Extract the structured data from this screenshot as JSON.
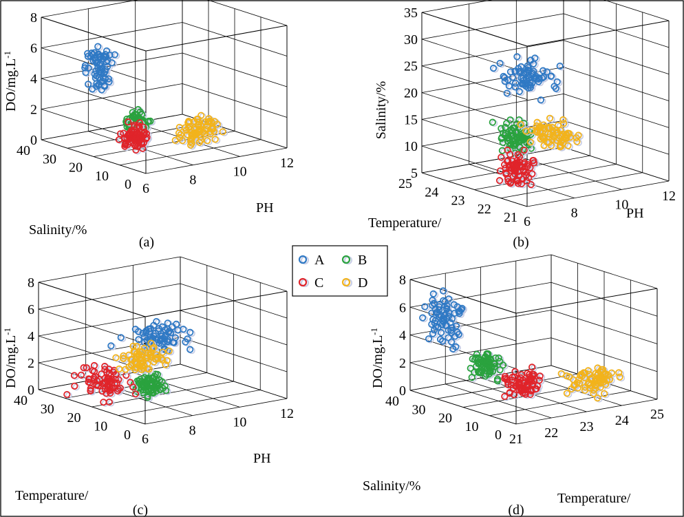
{
  "colors": {
    "A": "#2f79c4",
    "B": "#2aa23e",
    "C": "#e0242a",
    "D": "#f2b31c"
  },
  "legend": [
    {
      "label": "A",
      "color": "#2f79c4"
    },
    {
      "label": "B",
      "color": "#2aa23e"
    },
    {
      "label": "C",
      "color": "#e0242a"
    },
    {
      "label": "D",
      "color": "#f2b31c"
    }
  ],
  "chart_data": [
    {
      "type": "scatter3d",
      "caption": "(a)",
      "xlabel": "PH",
      "ylabel": "Salinity/%",
      "zlabel": "DO/mg.L-1",
      "xlim": [
        6,
        12
      ],
      "ylim": [
        0,
        40
      ],
      "zlim": [
        0,
        8
      ],
      "xticks": [
        "6",
        "8",
        "10",
        "12"
      ],
      "yticks": [
        "0",
        "10",
        "20",
        "30",
        "40"
      ],
      "zticks": [
        "0",
        "2",
        "4",
        "6",
        "8"
      ],
      "series": [
        {
          "name": "A",
          "pH": [
            6.5,
            7.5
          ],
          "salinity": [
            22,
            32
          ],
          "do": [
            3.0,
            7.2
          ]
        },
        {
          "name": "B",
          "pH": [
            6.8,
            8.0
          ],
          "salinity": [
            12,
            20
          ],
          "do": [
            1.2,
            3.0
          ]
        },
        {
          "name": "C",
          "pH": [
            6.6,
            7.8
          ],
          "salinity": [
            10,
            20
          ],
          "do": [
            0.0,
            2.5
          ]
        },
        {
          "name": "D",
          "pH": [
            8.2,
            10.5
          ],
          "salinity": [
            6,
            14
          ],
          "do": [
            0.2,
            2.5
          ]
        }
      ]
    },
    {
      "type": "scatter3d",
      "caption": "(b)",
      "xlabel": "PH",
      "ylabel": "Temperature/",
      "zlabel": "Salinity/%",
      "xlim": [
        6,
        12
      ],
      "ylim": [
        21,
        25
      ],
      "zlim": [
        5,
        35
      ],
      "xticks": [
        "6",
        "8",
        "10",
        "12"
      ],
      "yticks": [
        "21",
        "22",
        "23",
        "24",
        "25"
      ],
      "zticks": [
        "5",
        "10",
        "15",
        "20",
        "25",
        "30",
        "35"
      ],
      "series": [
        {
          "name": "A",
          "pH": [
            7.5,
            10.5
          ],
          "temperature": [
            22.8,
            24.5
          ],
          "salinity": [
            18,
            27
          ]
        },
        {
          "name": "B",
          "pH": [
            6.8,
            8.0
          ],
          "temperature": [
            22.0,
            23.5
          ],
          "salinity": [
            10,
            18
          ]
        },
        {
          "name": "C",
          "pH": [
            6.2,
            7.5
          ],
          "temperature": [
            21.5,
            23.0
          ],
          "salinity": [
            5,
            14
          ]
        },
        {
          "name": "D",
          "pH": [
            8.0,
            10.0
          ],
          "temperature": [
            22.0,
            23.5
          ],
          "salinity": [
            10,
            17
          ]
        }
      ]
    },
    {
      "type": "scatter3d",
      "caption": "(c)",
      "xlabel": "PH",
      "ylabel": "Temperature/",
      "zlabel": "DO/mg.L-1",
      "xlim": [
        6,
        12
      ],
      "ylim": [
        0,
        40
      ],
      "zlim": [
        0,
        8
      ],
      "xticks": [
        "6",
        "8",
        "10",
        "12"
      ],
      "yticks": [
        "0",
        "10",
        "20",
        "30",
        "40"
      ],
      "zticks": [
        "0",
        "2",
        "4",
        "6",
        "8"
      ],
      "series": [
        {
          "name": "A",
          "pH": [
            7.5,
            10.5
          ],
          "temperature": [
            15,
            30
          ],
          "do": [
            2.5,
            5.5
          ]
        },
        {
          "name": "B",
          "pH": [
            7.0,
            8.5
          ],
          "temperature": [
            10,
            18
          ],
          "do": [
            0.5,
            2.5
          ]
        },
        {
          "name": "C",
          "pH": [
            6.0,
            7.5
          ],
          "temperature": [
            10,
            35
          ],
          "do": [
            0.0,
            3.0
          ]
        },
        {
          "name": "D",
          "pH": [
            7.0,
            9.5
          ],
          "temperature": [
            15,
            28
          ],
          "do": [
            1.5,
            4.0
          ]
        }
      ]
    },
    {
      "type": "scatter3d",
      "caption": "(d)",
      "xlabel": "Temperature/",
      "ylabel": "Salinity/%",
      "zlabel": "DO/mg.L-1",
      "xlim": [
        21,
        25
      ],
      "ylim": [
        0,
        40
      ],
      "zlim": [
        0,
        8
      ],
      "xticks": [
        "21",
        "22",
        "23",
        "24",
        "25"
      ],
      "yticks": [
        "0",
        "10",
        "20",
        "30",
        "40"
      ],
      "zticks": [
        "0",
        "2",
        "4",
        "6",
        "8"
      ],
      "series": [
        {
          "name": "A",
          "temperature": [
            21.0,
            22.0
          ],
          "salinity": [
            28,
            40
          ],
          "do": [
            3.0,
            7.5
          ]
        },
        {
          "name": "B",
          "temperature": [
            21.5,
            22.5
          ],
          "salinity": [
            20,
            30
          ],
          "do": [
            1.0,
            3.5
          ]
        },
        {
          "name": "C",
          "temperature": [
            21.8,
            23.0
          ],
          "salinity": [
            10,
            22
          ],
          "do": [
            0.0,
            2.5
          ]
        },
        {
          "name": "D",
          "temperature": [
            23.0,
            24.8
          ],
          "salinity": [
            5,
            15
          ],
          "do": [
            0.0,
            2.5
          ]
        }
      ]
    }
  ]
}
